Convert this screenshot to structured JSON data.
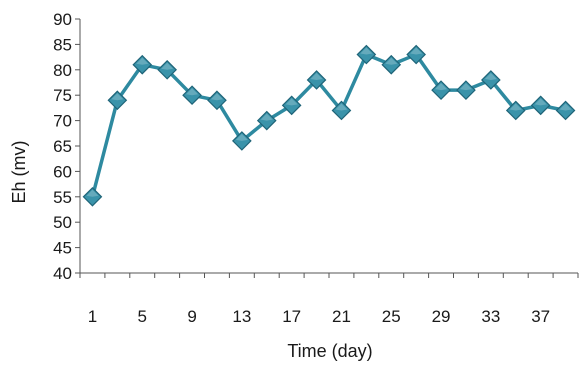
{
  "chart_data": {
    "type": "line",
    "xlabel": "Time (day)",
    "ylabel": "Eh (mv)",
    "ylim": [
      40,
      90
    ],
    "yticks": [
      40,
      45,
      50,
      55,
      60,
      65,
      70,
      75,
      80,
      85,
      90
    ],
    "xticks": [
      1,
      5,
      9,
      13,
      17,
      21,
      25,
      29,
      33,
      37
    ],
    "grid": false,
    "legend": "none",
    "colors": {
      "line": "#2e8aa0",
      "marker": "#3a93aa",
      "marker_edge": "#1f6478"
    },
    "series": [
      {
        "x": [
          1,
          3,
          5,
          7,
          9,
          11,
          13,
          15,
          17,
          19,
          21,
          23,
          25,
          27,
          29,
          31,
          33,
          35,
          37,
          39
        ],
        "values": [
          55,
          74,
          81,
          80,
          75,
          74,
          66,
          70,
          73,
          78,
          72,
          83,
          81,
          83,
          76,
          76,
          78,
          72,
          73,
          72
        ]
      }
    ]
  }
}
